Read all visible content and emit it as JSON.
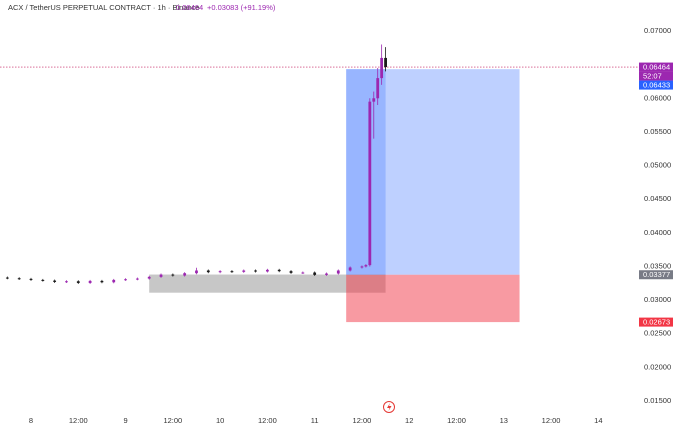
{
  "chart_data": {
    "type": "candlestick",
    "header": {
      "symbol": "ACX / TetherUS PERPETUAL CONTRACT · 1h · Binance",
      "price": 0.06464,
      "change": "+0.03083 (+91.19%)"
    },
    "x": [
      -6,
      -3,
      0,
      3,
      6,
      9,
      12,
      15,
      18,
      21,
      24,
      27,
      30,
      33,
      36,
      39,
      42,
      45,
      48,
      51,
      54,
      57,
      60,
      63,
      66,
      69,
      72,
      75,
      78,
      81,
      84,
      85,
      86,
      87,
      88,
      89,
      90
    ],
    "open": [
      0.03335,
      0.03325,
      0.03315,
      0.033,
      0.0329,
      0.0327,
      0.0328,
      0.03255,
      0.03285,
      0.03265,
      0.033,
      0.0331,
      0.0332,
      0.03345,
      0.0338,
      0.03365,
      0.034,
      0.0344,
      0.03415,
      0.0343,
      0.0342,
      0.0344,
      0.03425,
      0.0345,
      0.0343,
      0.03405,
      0.0341,
      0.03375,
      0.03395,
      0.0344,
      0.03485,
      0.035,
      0.0352,
      0.0595,
      0.06,
      0.063,
      0.066
    ],
    "high": [
      0.0335,
      0.0334,
      0.0333,
      0.03315,
      0.03305,
      0.03295,
      0.03295,
      0.033,
      0.033,
      0.03315,
      0.03325,
      0.03335,
      0.0336,
      0.03395,
      0.03395,
      0.03415,
      0.0348,
      0.03455,
      0.03445,
      0.03445,
      0.03455,
      0.03455,
      0.03465,
      0.03465,
      0.03445,
      0.03425,
      0.03425,
      0.0341,
      0.03455,
      0.035,
      0.03515,
      0.03535,
      0.06,
      0.061,
      0.0645,
      0.068,
      0.0676
    ],
    "low": [
      0.0331,
      0.033,
      0.03285,
      0.03275,
      0.03255,
      0.03255,
      0.0324,
      0.0324,
      0.0325,
      0.0325,
      0.03285,
      0.03295,
      0.03305,
      0.0333,
      0.0335,
      0.0335,
      0.03385,
      0.034,
      0.034,
      0.03405,
      0.03405,
      0.0341,
      0.0341,
      0.03415,
      0.0339,
      0.0339,
      0.0336,
      0.0336,
      0.0338,
      0.03425,
      0.0347,
      0.03485,
      0.035,
      0.054,
      0.059,
      0.062,
      0.064
    ],
    "close": [
      0.03325,
      0.03315,
      0.033,
      0.0329,
      0.0327,
      0.0328,
      0.03255,
      0.03285,
      0.03265,
      0.033,
      0.0331,
      0.0332,
      0.03345,
      0.0338,
      0.03365,
      0.034,
      0.0344,
      0.03415,
      0.0343,
      0.0342,
      0.0344,
      0.03425,
      0.0345,
      0.0343,
      0.03405,
      0.0341,
      0.03375,
      0.03395,
      0.0344,
      0.03485,
      0.035,
      0.0352,
      0.0595,
      0.06,
      0.063,
      0.066,
      0.06464
    ],
    "up_color": "#9c27b0",
    "down_color": "#1a1a1a",
    "xlim": [
      -7.87,
      149.5
    ],
    "xticks": [
      {
        "value": 0,
        "label": "8"
      },
      {
        "value": 12,
        "label": "12:00"
      },
      {
        "value": 24,
        "label": "9"
      },
      {
        "value": 36,
        "label": "12:00"
      },
      {
        "value": 48,
        "label": "10"
      },
      {
        "value": 60,
        "label": "12:00"
      },
      {
        "value": 72,
        "label": "11"
      },
      {
        "value": 84,
        "label": "12:00"
      },
      {
        "value": 96,
        "label": "12"
      },
      {
        "value": 108,
        "label": "12:00"
      },
      {
        "value": 120,
        "label": "13"
      },
      {
        "value": 132,
        "label": "12:00"
      },
      {
        "value": 144,
        "label": "14"
      }
    ],
    "ylim": [
      0.01292,
      0.07461
    ],
    "yticks": [
      {
        "value": 0.07,
        "label": "0.07000"
      },
      {
        "value": 0.06,
        "label": "0.06000"
      },
      {
        "value": 0.055,
        "label": "0.05500"
      },
      {
        "value": 0.05,
        "label": "0.05000"
      },
      {
        "value": 0.045,
        "label": "0.04500"
      },
      {
        "value": 0.04,
        "label": "0.04000"
      },
      {
        "value": 0.035,
        "label": "0.03500"
      },
      {
        "value": 0.03,
        "label": "0.03000"
      },
      {
        "value": 0.025,
        "label": "0.02500"
      },
      {
        "value": 0.02,
        "label": "0.02000"
      },
      {
        "value": 0.015,
        "label": "0.01500"
      }
    ],
    "grid": false,
    "position": {
      "start": 80,
      "end": 124,
      "entry": 0.03377,
      "target": 0.06433,
      "stop": 0.02673
    },
    "range_box": {
      "start": 30,
      "end": 90,
      "top": 0.0338,
      "bottom": 0.0311
    },
    "price_tags": [
      {
        "label": "0.06464",
        "value": 0.06464,
        "color": "#9c27b0"
      },
      {
        "label": "52:07",
        "color": "#9c27b0"
      },
      {
        "label": "0.06433",
        "value": 0.06433,
        "color": "#2962ff"
      },
      {
        "label": "0.03377",
        "value": 0.03377,
        "color": "#787b86"
      },
      {
        "label": "0.02673",
        "value": 0.02673,
        "color": "#f23645"
      }
    ]
  }
}
